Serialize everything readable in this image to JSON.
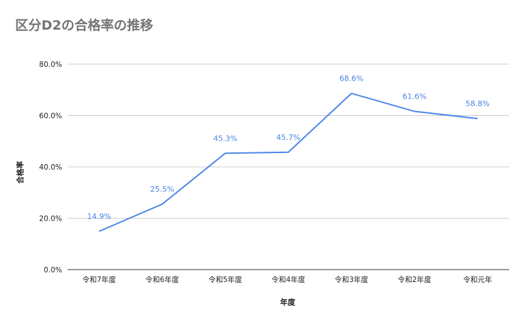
{
  "chart_data": {
    "type": "line",
    "title": "区分D2の合格率の推移",
    "xlabel": "年度",
    "ylabel": "合格率",
    "categories": [
      "令和7年度",
      "令和6年度",
      "令和5年度",
      "令和4年度",
      "令和3年度",
      "令和2年度",
      "令和元年"
    ],
    "series": [
      {
        "values": [
          14.9,
          25.5,
          45.3,
          45.7,
          68.6,
          61.6,
          58.8
        ],
        "labels": [
          "14.9%",
          "25.5%",
          "45.3%",
          "45.7%",
          "68.6%",
          "61.6%",
          "58.8%"
        ],
        "color": "#4a86e8"
      }
    ],
    "yticks": [
      "0.0%",
      "20.0%",
      "40.0%",
      "60.0%",
      "80.0%"
    ],
    "ylim": [
      0,
      80
    ],
    "grid": true,
    "legend": "none"
  }
}
